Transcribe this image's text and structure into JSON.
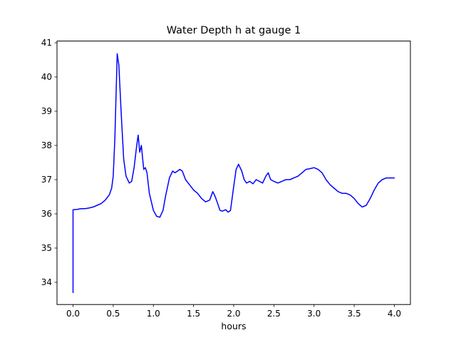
{
  "figure": {
    "background": "#ffffff",
    "frame_color": "#000000"
  },
  "chart_data": {
    "type": "line",
    "title": "Water Depth h at gauge 1",
    "xlabel": "hours",
    "ylabel": "",
    "grid": false,
    "legend": null,
    "line_color": "#0000ff",
    "line_width": 1.5,
    "xlim": [
      -0.2,
      4.2
    ],
    "ylim": [
      33.35,
      41.05
    ],
    "x_ticks": [
      0.0,
      0.5,
      1.0,
      1.5,
      2.0,
      2.5,
      3.0,
      3.5,
      4.0
    ],
    "x_tick_labels": [
      "0.0",
      "0.5",
      "1.0",
      "1.5",
      "2.0",
      "2.5",
      "3.0",
      "3.5",
      "4.0"
    ],
    "y_ticks": [
      34,
      35,
      36,
      37,
      38,
      39,
      40,
      41
    ],
    "y_tick_labels": [
      "34",
      "35",
      "36",
      "37",
      "38",
      "39",
      "40",
      "41"
    ],
    "series": [
      {
        "name": "Water depth h at gauge 1",
        "points": [
          [
            0.0,
            33.7
          ],
          [
            0.0,
            36.12
          ],
          [
            0.05,
            36.13
          ],
          [
            0.1,
            36.15
          ],
          [
            0.15,
            36.15
          ],
          [
            0.2,
            36.17
          ],
          [
            0.25,
            36.2
          ],
          [
            0.3,
            36.25
          ],
          [
            0.35,
            36.3
          ],
          [
            0.4,
            36.4
          ],
          [
            0.45,
            36.55
          ],
          [
            0.48,
            36.75
          ],
          [
            0.5,
            37.1
          ],
          [
            0.52,
            38.2
          ],
          [
            0.55,
            40.68
          ],
          [
            0.57,
            40.35
          ],
          [
            0.6,
            38.9
          ],
          [
            0.63,
            37.6
          ],
          [
            0.66,
            37.1
          ],
          [
            0.7,
            36.9
          ],
          [
            0.73,
            36.95
          ],
          [
            0.76,
            37.35
          ],
          [
            0.79,
            37.95
          ],
          [
            0.81,
            38.3
          ],
          [
            0.83,
            37.8
          ],
          [
            0.85,
            38.0
          ],
          [
            0.88,
            37.3
          ],
          [
            0.9,
            37.35
          ],
          [
            0.92,
            37.2
          ],
          [
            0.95,
            36.6
          ],
          [
            1.0,
            36.1
          ],
          [
            1.04,
            35.93
          ],
          [
            1.08,
            35.9
          ],
          [
            1.12,
            36.1
          ],
          [
            1.15,
            36.5
          ],
          [
            1.2,
            37.05
          ],
          [
            1.24,
            37.25
          ],
          [
            1.27,
            37.2
          ],
          [
            1.3,
            37.25
          ],
          [
            1.33,
            37.3
          ],
          [
            1.36,
            37.25
          ],
          [
            1.4,
            37.0
          ],
          [
            1.45,
            36.85
          ],
          [
            1.5,
            36.7
          ],
          [
            1.55,
            36.6
          ],
          [
            1.6,
            36.45
          ],
          [
            1.65,
            36.35
          ],
          [
            1.7,
            36.4
          ],
          [
            1.74,
            36.65
          ],
          [
            1.77,
            36.5
          ],
          [
            1.8,
            36.3
          ],
          [
            1.83,
            36.1
          ],
          [
            1.86,
            36.08
          ],
          [
            1.9,
            36.12
          ],
          [
            1.93,
            36.05
          ],
          [
            1.96,
            36.1
          ],
          [
            2.0,
            36.8
          ],
          [
            2.03,
            37.3
          ],
          [
            2.06,
            37.45
          ],
          [
            2.1,
            37.25
          ],
          [
            2.13,
            37.0
          ],
          [
            2.16,
            36.9
          ],
          [
            2.2,
            36.95
          ],
          [
            2.24,
            36.88
          ],
          [
            2.28,
            37.0
          ],
          [
            2.32,
            36.95
          ],
          [
            2.36,
            36.9
          ],
          [
            2.4,
            37.1
          ],
          [
            2.43,
            37.2
          ],
          [
            2.46,
            37.0
          ],
          [
            2.5,
            36.95
          ],
          [
            2.55,
            36.9
          ],
          [
            2.6,
            36.95
          ],
          [
            2.65,
            37.0
          ],
          [
            2.7,
            37.0
          ],
          [
            2.75,
            37.05
          ],
          [
            2.8,
            37.1
          ],
          [
            2.85,
            37.2
          ],
          [
            2.9,
            37.3
          ],
          [
            2.95,
            37.32
          ],
          [
            3.0,
            37.35
          ],
          [
            3.05,
            37.3
          ],
          [
            3.1,
            37.2
          ],
          [
            3.15,
            37.0
          ],
          [
            3.2,
            36.85
          ],
          [
            3.25,
            36.75
          ],
          [
            3.3,
            36.65
          ],
          [
            3.35,
            36.6
          ],
          [
            3.4,
            36.6
          ],
          [
            3.45,
            36.55
          ],
          [
            3.5,
            36.45
          ],
          [
            3.55,
            36.3
          ],
          [
            3.6,
            36.2
          ],
          [
            3.65,
            36.25
          ],
          [
            3.7,
            36.45
          ],
          [
            3.75,
            36.7
          ],
          [
            3.8,
            36.9
          ],
          [
            3.85,
            37.0
          ],
          [
            3.9,
            37.05
          ],
          [
            3.95,
            37.05
          ],
          [
            4.0,
            37.05
          ]
        ]
      }
    ]
  }
}
